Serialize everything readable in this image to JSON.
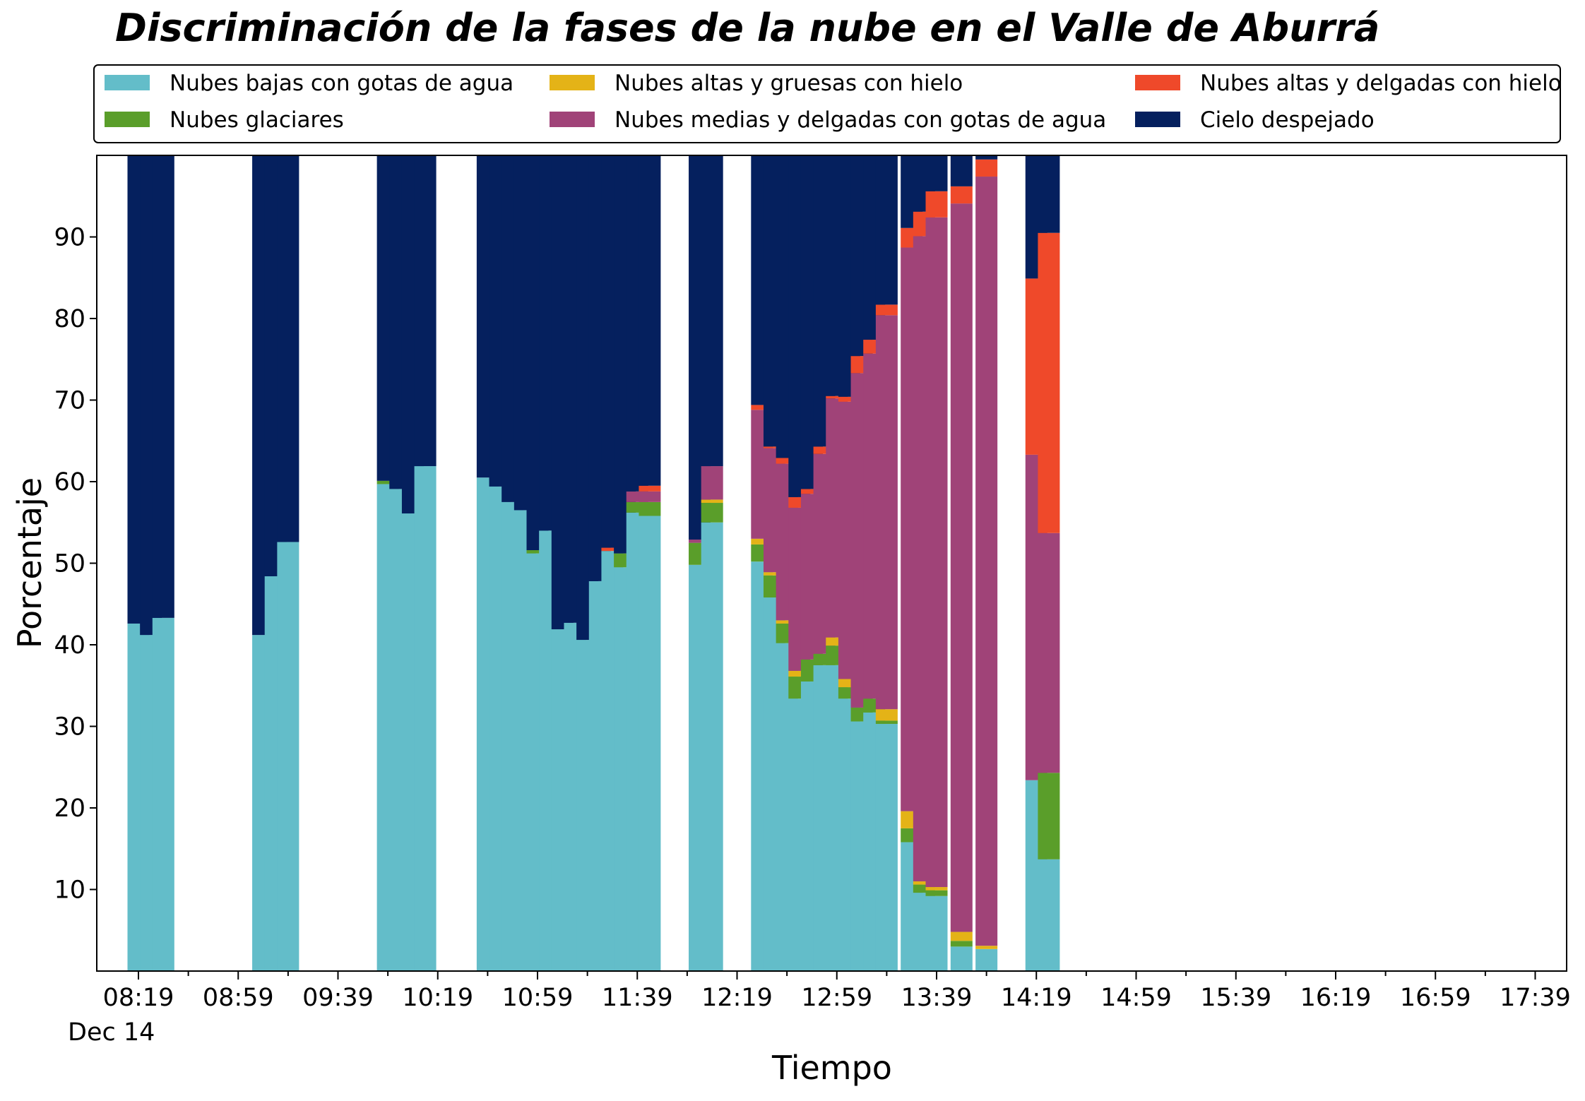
{
  "chart_data": {
    "type": "bar",
    "stacked": true,
    "title": "Discriminación de la fases de la nube en el Valle de Aburrá",
    "xlabel": "Tiempo",
    "ylabel": "Porcentaje",
    "ylim": [
      0,
      100
    ],
    "y_ticks": [
      10,
      20,
      30,
      40,
      50,
      60,
      70,
      80,
      90
    ],
    "x_ticks": [
      "08:19",
      "08:59",
      "09:39",
      "10:19",
      "10:59",
      "11:39",
      "12:19",
      "12:59",
      "13:39",
      "14:19",
      "14:59",
      "15:39",
      "16:19",
      "16:59",
      "17:39"
    ],
    "x_date_label": "Dec 14",
    "grid": false,
    "legend_position": "top",
    "series": [
      {
        "name": "Nubes bajas con gotas de agua",
        "color": "#63bdc9"
      },
      {
        "name": "Nubes glaciares",
        "color": "#5a9e2a"
      },
      {
        "name": "Nubes altas y gruesas con hielo",
        "color": "#e4b317"
      },
      {
        "name": "Nubes medias y delgadas con gotas de agua",
        "color": "#a04378"
      },
      {
        "name": "Nubes altas y delgadas con hielo",
        "color": "#ef492a"
      },
      {
        "name": "Cielo despejado",
        "color": "#05205e"
      }
    ],
    "bars": [
      {
        "time": "08:19",
        "values": [
          42.6,
          0,
          0,
          0,
          0,
          57.4
        ]
      },
      {
        "time": "08:24",
        "values": [
          41.2,
          0,
          0,
          0,
          0,
          58.8
        ]
      },
      {
        "time": "08:29",
        "values": [
          43.3,
          0,
          0,
          0,
          0,
          56.7
        ]
      },
      {
        "time": "09:09",
        "values": [
          41.2,
          0,
          0,
          0,
          0,
          58.8
        ]
      },
      {
        "time": "09:14",
        "values": [
          48.4,
          0,
          0,
          0,
          0,
          51.6
        ]
      },
      {
        "time": "09:19",
        "values": [
          52.6,
          0,
          0,
          0,
          0,
          47.4
        ]
      },
      {
        "time": "09:59",
        "values": [
          59.7,
          0.4,
          0,
          0,
          0,
          39.9
        ]
      },
      {
        "time": "10:04",
        "values": [
          59.1,
          0,
          0,
          0,
          0,
          40.9
        ]
      },
      {
        "time": "10:09",
        "values": [
          56.1,
          0,
          0,
          0,
          0,
          43.9
        ]
      },
      {
        "time": "10:14",
        "values": [
          61.9,
          0,
          0,
          0,
          0,
          38.1
        ]
      },
      {
        "time": "10:39",
        "values": [
          60.5,
          0,
          0,
          0,
          0,
          39.5
        ]
      },
      {
        "time": "10:44",
        "values": [
          59.4,
          0,
          0,
          0,
          0,
          40.6
        ]
      },
      {
        "time": "10:49",
        "values": [
          57.5,
          0,
          0,
          0,
          0,
          42.5
        ]
      },
      {
        "time": "10:54",
        "values": [
          56.5,
          0,
          0,
          0,
          0,
          43.5
        ]
      },
      {
        "time": "10:59",
        "values": [
          51.2,
          0.4,
          0,
          0,
          0,
          48.4
        ]
      },
      {
        "time": "11:04",
        "values": [
          54.0,
          0,
          0,
          0,
          0,
          46.0
        ]
      },
      {
        "time": "11:09",
        "values": [
          41.9,
          0,
          0,
          0,
          0,
          58.1
        ]
      },
      {
        "time": "11:14",
        "values": [
          42.7,
          0,
          0,
          0,
          0,
          57.3
        ]
      },
      {
        "time": "11:19",
        "values": [
          40.6,
          0,
          0,
          0,
          0,
          59.4
        ]
      },
      {
        "time": "11:24",
        "values": [
          47.8,
          0,
          0,
          0,
          0,
          52.2
        ]
      },
      {
        "time": "11:29",
        "values": [
          51.5,
          0,
          0,
          0,
          0.4,
          48.1
        ]
      },
      {
        "time": "11:34",
        "values": [
          49.5,
          1.7,
          0,
          0,
          0,
          48.8
        ]
      },
      {
        "time": "11:39",
        "values": [
          56.2,
          1.3,
          0,
          1.3,
          0,
          41.2
        ]
      },
      {
        "time": "11:44",
        "values": [
          55.8,
          1.7,
          0,
          1.3,
          0.7,
          40.5
        ]
      },
      {
        "time": "12:04",
        "values": [
          49.8,
          2.7,
          0,
          0.4,
          0,
          47.1
        ]
      },
      {
        "time": "12:09",
        "values": [
          55.0,
          2.4,
          0.4,
          4.1,
          0,
          38.1
        ]
      },
      {
        "time": "12:29",
        "values": [
          50.2,
          2.1,
          0.7,
          15.8,
          0.6,
          30.6
        ]
      },
      {
        "time": "12:34",
        "values": [
          45.8,
          2.7,
          0.4,
          15.2,
          0.2,
          35.7
        ]
      },
      {
        "time": "12:39",
        "values": [
          40.2,
          2.4,
          0.4,
          19.2,
          0.7,
          37.1
        ]
      },
      {
        "time": "12:44",
        "values": [
          33.4,
          2.7,
          0.7,
          20.0,
          1.3,
          41.9
        ]
      },
      {
        "time": "12:49",
        "values": [
          35.5,
          2.7,
          0,
          20.3,
          0.6,
          40.9
        ]
      },
      {
        "time": "12:54",
        "values": [
          37.5,
          1.4,
          0,
          24.5,
          0.9,
          35.7
        ]
      },
      {
        "time": "12:59",
        "values": [
          37.5,
          2.4,
          1.0,
          29.3,
          0.3,
          29.5
        ]
      },
      {
        "time": "13:04",
        "values": [
          33.4,
          1.4,
          1.0,
          34.0,
          0.6,
          29.6
        ]
      },
      {
        "time": "13:09",
        "values": [
          30.6,
          1.7,
          0,
          41.0,
          2.1,
          24.6
        ]
      },
      {
        "time": "13:14",
        "values": [
          31.7,
          1.7,
          0,
          42.3,
          1.7,
          22.6
        ]
      },
      {
        "time": "13:19",
        "values": [
          30.3,
          0.4,
          1.4,
          48.3,
          1.3,
          18.3
        ]
      },
      {
        "time": "13:29",
        "values": [
          15.8,
          1.7,
          2.1,
          69.1,
          2.4,
          8.9
        ]
      },
      {
        "time": "13:34",
        "values": [
          9.6,
          1.0,
          0.4,
          79.1,
          3.0,
          6.9
        ]
      },
      {
        "time": "13:39",
        "values": [
          9.2,
          0.7,
          0.4,
          82.1,
          3.2,
          4.4
        ]
      },
      {
        "time": "13:49",
        "values": [
          3.0,
          0.7,
          1.1,
          89.3,
          2.1,
          3.8
        ]
      },
      {
        "time": "13:59",
        "values": [
          2.7,
          0,
          0.4,
          94.3,
          2.1,
          0.5
        ]
      },
      {
        "time": "14:19",
        "values": [
          23.4,
          0,
          0,
          39.9,
          21.6,
          15.1
        ]
      },
      {
        "time": "14:24",
        "values": [
          13.7,
          10.6,
          0,
          29.4,
          36.8,
          9.5
        ]
      }
    ]
  }
}
